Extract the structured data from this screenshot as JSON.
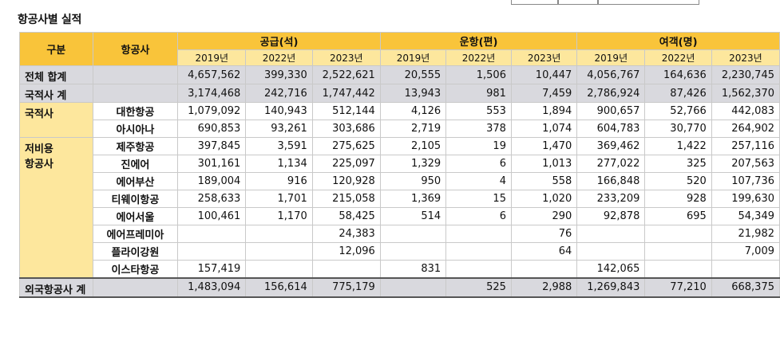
{
  "title": "항공사별 실적",
  "headers": {
    "division": "구분",
    "airline": "항공사",
    "groups": [
      "공급(석)",
      "운항(편)",
      "여객(명)"
    ],
    "years": [
      "2019년",
      "2022년",
      "2023년"
    ]
  },
  "rows": [
    {
      "cat": "전체 합계",
      "airline": "",
      "values": [
        "4,657,562",
        "399,330",
        "2,522,621",
        "20,555",
        "1,506",
        "10,447",
        "4,056,767",
        "164,636",
        "2,230,745"
      ]
    },
    {
      "cat": "국적사 계",
      "airline": "",
      "values": [
        "3,174,468",
        "242,716",
        "1,747,442",
        "13,943",
        "981",
        "7,459",
        "2,786,924",
        "87,426",
        "1,562,370"
      ]
    },
    {
      "cat": "국적사",
      "airline": "대한항공",
      "values": [
        "1,079,092",
        "140,943",
        "512,144",
        "4,126",
        "553",
        "1,894",
        "900,657",
        "52,766",
        "442,083"
      ]
    },
    {
      "cat": "",
      "airline": "아시아나",
      "values": [
        "690,853",
        "93,261",
        "303,686",
        "2,719",
        "378",
        "1,074",
        "604,783",
        "30,770",
        "264,902"
      ]
    },
    {
      "cat": "저비용",
      "cat2": "항공사",
      "airline": "제주항공",
      "values": [
        "397,845",
        "3,591",
        "275,625",
        "2,105",
        "19",
        "1,470",
        "369,462",
        "1,422",
        "257,116"
      ]
    },
    {
      "cat": "",
      "airline": "진에어",
      "values": [
        "301,161",
        "1,134",
        "225,097",
        "1,329",
        "6",
        "1,013",
        "277,022",
        "325",
        "207,563"
      ]
    },
    {
      "cat": "",
      "airline": "에어부산",
      "values": [
        "189,004",
        "916",
        "120,928",
        "950",
        "4",
        "558",
        "166,848",
        "520",
        "107,736"
      ]
    },
    {
      "cat": "",
      "airline": "티웨이항공",
      "values": [
        "258,633",
        "1,701",
        "215,058",
        "1,369",
        "15",
        "1,020",
        "233,209",
        "928",
        "199,630"
      ]
    },
    {
      "cat": "",
      "airline": "에어서울",
      "values": [
        "100,461",
        "1,170",
        "58,425",
        "514",
        "6",
        "290",
        "92,878",
        "695",
        "54,349"
      ]
    },
    {
      "cat": "",
      "airline": "에어프레미아",
      "values": [
        "",
        "",
        "24,383",
        "",
        "",
        "76",
        "",
        "",
        "21,982"
      ]
    },
    {
      "cat": "",
      "airline": "플라이강원",
      "values": [
        "",
        "",
        "12,096",
        "",
        "",
        "64",
        "",
        "",
        "7,009"
      ]
    },
    {
      "cat": "",
      "airline": "이스타항공",
      "values": [
        "157,419",
        "",
        "",
        "831",
        "",
        "",
        "142,065",
        "",
        ""
      ]
    },
    {
      "cat": "외국항공사 계",
      "airline": "",
      "values": [
        "1,483,094",
        "156,614",
        "775,179",
        "",
        "525",
        "2,988",
        "1,269,843",
        "77,210",
        "668,375"
      ]
    }
  ]
}
